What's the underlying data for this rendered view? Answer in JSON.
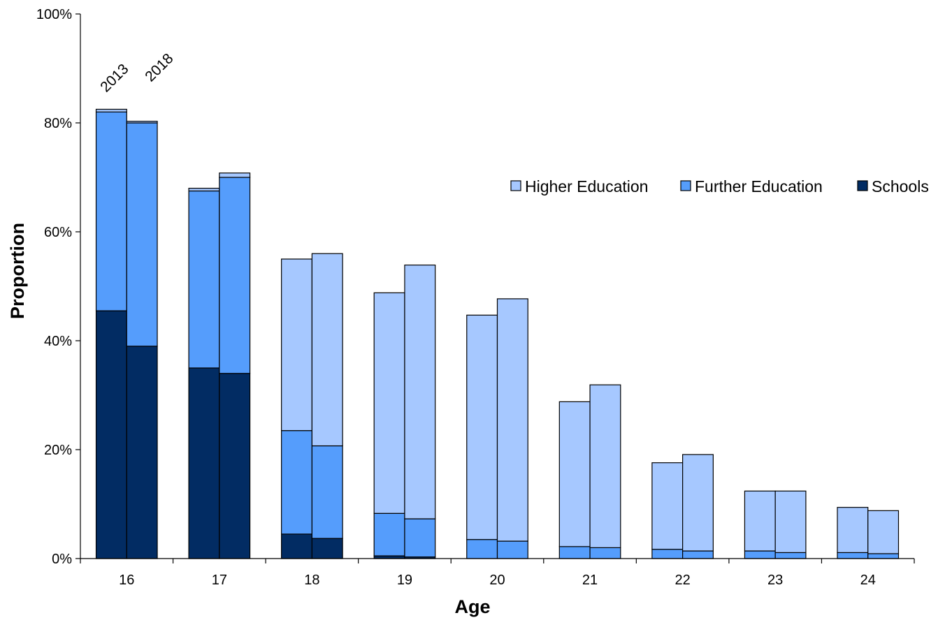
{
  "chart_data": {
    "type": "bar",
    "stacked": true,
    "xlabel": "Age",
    "ylabel": "Proportion",
    "ylim": [
      0,
      100
    ],
    "yticks": [
      "0%",
      "20%",
      "40%",
      "60%",
      "80%",
      "100%"
    ],
    "categories": [
      "16",
      "17",
      "18",
      "19",
      "20",
      "21",
      "22",
      "23",
      "24"
    ],
    "years": [
      "2013",
      "2018"
    ],
    "year_annotations": [
      "2013",
      "2018"
    ],
    "legend": {
      "position": "right",
      "entries": [
        "Higher Education",
        "Further Education",
        "Schools"
      ]
    },
    "colors": {
      "Higher Education": "#a6c8ff",
      "Further Education": "#559dfc",
      "Schools": "#022c63"
    },
    "series": [
      {
        "name": "Schools",
        "values_2013": [
          45.5,
          35.0,
          4.5,
          0.5,
          0.0,
          0.0,
          0.0,
          0.0,
          0.0
        ],
        "values_2018": [
          39.0,
          34.0,
          3.7,
          0.3,
          0.0,
          0.0,
          0.0,
          0.0,
          0.0
        ]
      },
      {
        "name": "Further Education",
        "values_2013": [
          36.5,
          32.5,
          19.0,
          7.8,
          3.5,
          2.2,
          1.7,
          1.4,
          1.1
        ],
        "values_2018": [
          41.0,
          36.0,
          17.0,
          7.0,
          3.2,
          2.0,
          1.4,
          1.1,
          0.9
        ]
      },
      {
        "name": "Higher Education",
        "values_2013": [
          0.5,
          0.5,
          31.5,
          40.5,
          41.2,
          26.6,
          15.9,
          11.0,
          8.3
        ],
        "values_2018": [
          0.3,
          0.8,
          35.3,
          46.6,
          44.5,
          29.9,
          17.7,
          11.3,
          7.9
        ]
      }
    ]
  }
}
